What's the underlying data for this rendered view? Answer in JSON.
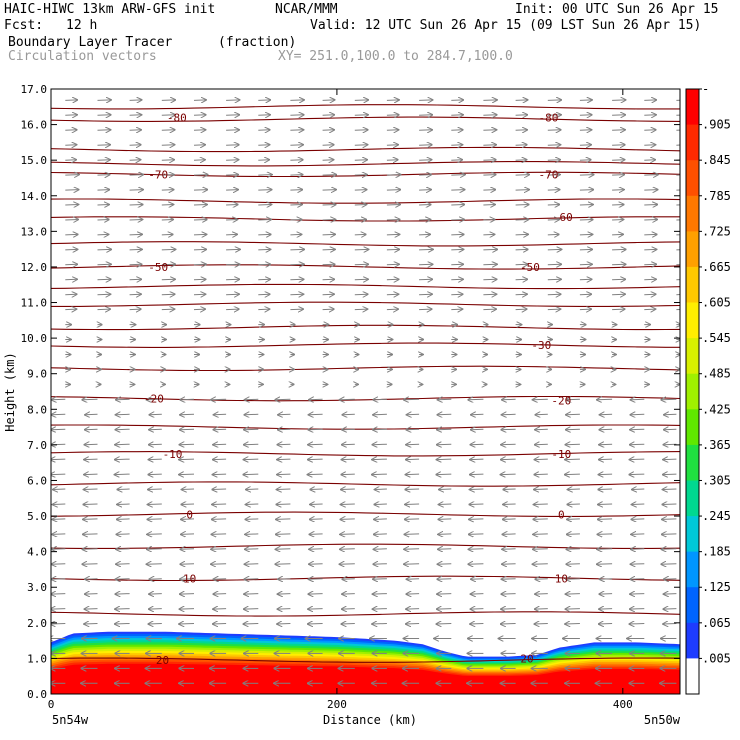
{
  "header": {
    "model": "HAIC-HIWC 13km ARW-GFS init",
    "org": "NCAR/MMM",
    "init": "Init: 00 UTC Sun 26 Apr 15",
    "fcst_label": "Fcst:",
    "fcst_value": "12 h",
    "valid": "Valid: 12 UTC Sun 26 Apr 15 (09 LST Sun 26 Apr 15)",
    "field": "Boundary Layer Tracer",
    "units": "(fraction)",
    "vectors": "Circulation vectors",
    "xy": "XY= 251.0,100.0 to 284.7,100.0"
  },
  "axes": {
    "ylabel": "Height (km)",
    "xlabel": "Distance (km)",
    "left_corner": "5n54w",
    "right_corner": "5n50w"
  },
  "colors": {
    "contour": "#7a0000",
    "vector": "#808080"
  },
  "chart_data": {
    "type": "heatmap",
    "title": "Boundary Layer Tracer",
    "xlabel": "Distance (km)",
    "ylabel": "Height (km)",
    "xlim": [
      0,
      440
    ],
    "ylim": [
      0,
      17
    ],
    "xticks": [
      "0",
      "200",
      "400"
    ],
    "xtick_values": [
      0,
      200,
      400
    ],
    "yticks": [
      "0.0",
      "1.0",
      "2.0",
      "3.0",
      "4.0",
      "5.0",
      "6.0",
      "7.0",
      "8.0",
      "9.0",
      "10.0",
      "11.0",
      "12.0",
      "13.0",
      "14.0",
      "15.0",
      "16.0",
      "17.0"
    ],
    "colorbar": {
      "labels": [
        "-",
        ".905",
        ".845",
        ".785",
        ".725",
        ".665",
        ".605",
        ".545",
        ".485",
        ".425",
        ".365",
        ".305",
        ".245",
        ".185",
        ".125",
        ".065",
        ".005"
      ],
      "colors": [
        "#ff0000",
        "#ff2a00",
        "#ff5000",
        "#ff7800",
        "#ffa000",
        "#ffc800",
        "#ffee00",
        "#d8f000",
        "#a0f000",
        "#60e800",
        "#20e040",
        "#00d890",
        "#00c8d8",
        "#0096ff",
        "#0064ff",
        "#1e3cff",
        "#ffffff"
      ]
    },
    "tracer_top_km": {
      "x": [
        0,
        15,
        40,
        80,
        120,
        160,
        200,
        240,
        260,
        275,
        290,
        320,
        340,
        355,
        380,
        410,
        440
      ],
      "y": [
        1.45,
        1.7,
        1.75,
        1.75,
        1.7,
        1.65,
        1.6,
        1.5,
        1.4,
        1.2,
        1.05,
        1.05,
        1.1,
        1.3,
        1.45,
        1.45,
        1.4
      ]
    },
    "temperature_contours_C": [
      {
        "label": "80",
        "y_km": 16.15
      },
      {
        "label": "70",
        "y_km": 14.6
      },
      {
        "label": "60",
        "y_km": 13.35
      },
      {
        "label": "50",
        "y_km": 12.0
      },
      {
        "label": "30",
        "y_km": 9.8
      },
      {
        "label": "20",
        "y_km": 8.3
      },
      {
        "label": "10",
        "y_km": 6.75
      },
      {
        "label": "0",
        "y_km": 5.05
      },
      {
        "label": "10",
        "y_km": 3.25
      },
      {
        "label": "20",
        "y_km": 0.95
      }
    ],
    "contour_labels": [
      {
        "text": "-80",
        "x_km": 88,
        "y_km": 16.2
      },
      {
        "text": "-80",
        "x_km": 348,
        "y_km": 16.2
      },
      {
        "text": "-70",
        "x_km": 75,
        "y_km": 14.6
      },
      {
        "text": "-70",
        "x_km": 348,
        "y_km": 14.6
      },
      {
        "text": "-60",
        "x_km": 358,
        "y_km": 13.4
      },
      {
        "text": "-50",
        "x_km": 75,
        "y_km": 12.0
      },
      {
        "text": "-50",
        "x_km": 335,
        "y_km": 12.0
      },
      {
        "text": "-30",
        "x_km": 343,
        "y_km": 9.8
      },
      {
        "text": "-20",
        "x_km": 72,
        "y_km": 8.3
      },
      {
        "text": "-20",
        "x_km": 357,
        "y_km": 8.25
      },
      {
        "text": "-10",
        "x_km": 85,
        "y_km": 6.75
      },
      {
        "text": "-10",
        "x_km": 357,
        "y_km": 6.75
      },
      {
        "text": "0",
        "x_km": 97,
        "y_km": 5.05
      },
      {
        "text": "0",
        "x_km": 357,
        "y_km": 5.05
      },
      {
        "text": "10",
        "x_km": 97,
        "y_km": 3.25
      },
      {
        "text": "10",
        "x_km": 357,
        "y_km": 3.25
      },
      {
        "text": "20",
        "x_km": 78,
        "y_km": 0.95
      },
      {
        "text": "20",
        "x_km": 333,
        "y_km": 1.0
      }
    ],
    "extra_contour_levels_km": [
      16.5,
      15.3,
      14.9,
      13.85,
      12.65,
      11.45,
      10.95,
      10.3,
      9.15,
      7.5,
      5.9,
      4.15,
      2.25
    ]
  }
}
